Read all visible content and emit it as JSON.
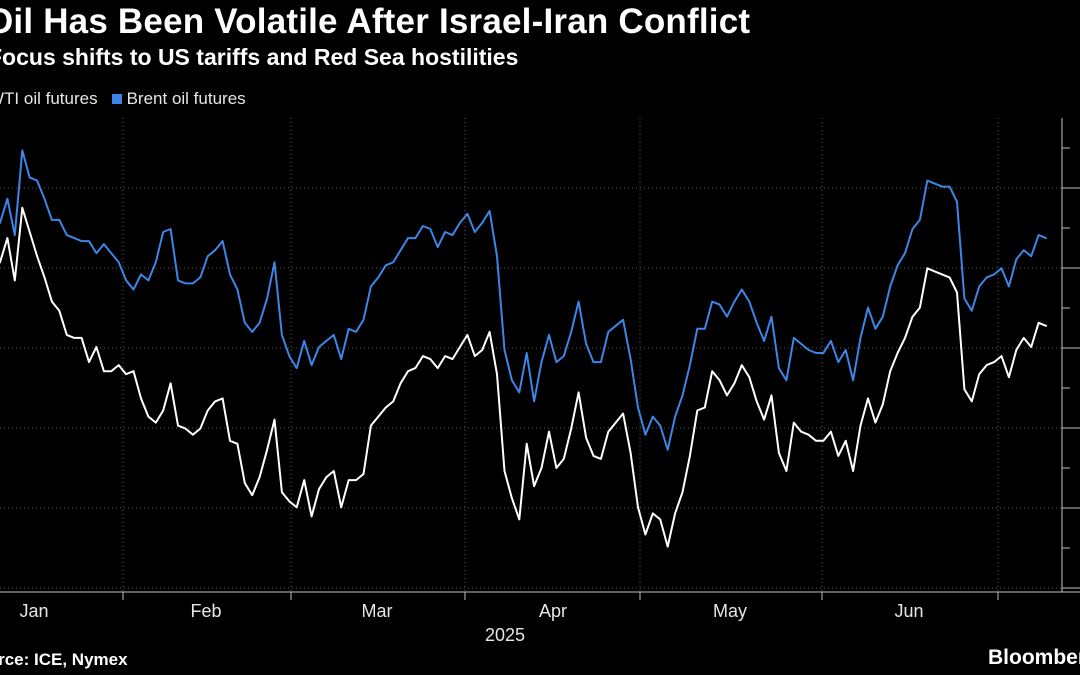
{
  "header": {
    "title": "Oil Has Been Volatile After Israel-Iran Conflict",
    "subtitle": "Focus shifts to US tariffs and Red Sea hostilities"
  },
  "footer": {
    "source": "Source: ICE, Nymex",
    "brand": "Bloomberg"
  },
  "colors": {
    "background": "#000000",
    "wti": "#ffffff",
    "brent": "#3d85e6",
    "grid": "#5a5a5a",
    "axis": "#bfbfbf"
  },
  "chart_data": {
    "type": "line",
    "xlabel": "2025",
    "x_ticks": [
      "Jan",
      "Feb",
      "Mar",
      "Apr",
      "May",
      "Jun"
    ],
    "grid": true,
    "legend_position": "top-left",
    "series": [
      {
        "name": "WTI oil futures",
        "color": "#ffffff",
        "values": [
          79.9,
          80.7,
          79.3,
          81.7,
          80.9,
          80.1,
          79.4,
          78.6,
          78.3,
          77.5,
          77.4,
          77.4,
          76.6,
          77.1,
          76.3,
          76.3,
          76.5,
          76.2,
          76.3,
          75.4,
          74.8,
          74.6,
          75.0,
          75.9,
          74.5,
          74.4,
          74.2,
          74.4,
          75.0,
          75.3,
          75.4,
          74.0,
          73.9,
          72.6,
          72.2,
          72.8,
          73.7,
          74.7,
          72.3,
          72.0,
          71.8,
          72.7,
          71.5,
          72.4,
          72.8,
          73.0,
          71.8,
          72.7,
          72.7,
          72.9,
          74.5,
          74.8,
          75.1,
          75.3,
          75.9,
          76.3,
          76.4,
          76.8,
          76.7,
          76.4,
          76.8,
          76.7,
          77.1,
          77.5,
          76.8,
          77.0,
          77.6,
          76.2,
          73.0,
          72.1,
          71.4,
          73.9,
          72.5,
          73.1,
          74.3,
          73.1,
          73.4,
          74.4,
          75.6,
          74.1,
          73.5,
          73.4,
          74.3,
          74.6,
          74.9,
          73.6,
          71.8,
          70.9,
          71.6,
          71.4,
          70.5,
          71.6,
          72.3,
          73.5,
          75.0,
          75.1,
          76.3,
          76.0,
          75.5,
          75.9,
          76.5,
          76.1,
          75.3,
          74.7,
          75.5,
          73.6,
          73.0,
          74.6,
          74.3,
          74.2,
          74.0,
          74.0,
          74.3,
          73.5,
          74.0,
          73.0,
          74.5,
          75.4,
          74.6,
          75.2,
          76.3,
          76.9,
          77.4,
          78.1,
          78.4,
          79.7,
          79.6,
          79.5,
          79.4,
          78.9,
          75.7,
          75.3,
          76.2,
          76.5,
          76.6,
          76.8,
          76.1,
          77.0,
          77.4,
          77.1,
          77.9,
          77.8
        ]
      },
      {
        "name": "Brent oil futures",
        "color": "#3d85e6",
        "values": [
          81.2,
          82.0,
          80.8,
          83.6,
          82.7,
          82.6,
          82.0,
          81.3,
          81.3,
          80.8,
          80.7,
          80.6,
          80.6,
          80.2,
          80.5,
          80.2,
          79.9,
          79.3,
          79.0,
          79.5,
          79.3,
          79.9,
          80.9,
          81.0,
          79.3,
          79.2,
          79.2,
          79.4,
          80.1,
          80.3,
          80.6,
          79.5,
          79.0,
          77.9,
          77.6,
          77.9,
          78.7,
          79.9,
          77.5,
          76.8,
          76.4,
          77.3,
          76.5,
          77.1,
          77.3,
          77.5,
          76.7,
          77.7,
          77.6,
          78.0,
          79.1,
          79.4,
          79.8,
          79.9,
          80.3,
          80.7,
          80.7,
          81.1,
          81.0,
          80.4,
          80.9,
          80.8,
          81.2,
          81.5,
          80.9,
          81.2,
          81.6,
          80.1,
          77.0,
          76.0,
          75.6,
          76.9,
          75.3,
          76.6,
          77.5,
          76.6,
          76.8,
          77.6,
          78.6,
          77.2,
          76.6,
          76.6,
          77.6,
          77.8,
          78.0,
          76.7,
          75.1,
          74.2,
          74.8,
          74.5,
          73.7,
          74.8,
          75.5,
          76.5,
          77.7,
          77.7,
          78.6,
          78.5,
          78.1,
          78.6,
          79.0,
          78.6,
          77.9,
          77.3,
          78.1,
          76.4,
          76.0,
          77.4,
          77.2,
          77.0,
          76.9,
          76.9,
          77.3,
          76.6,
          77.0,
          76.0,
          77.4,
          78.4,
          77.7,
          78.1,
          79.1,
          79.8,
          80.2,
          81.0,
          81.3,
          82.6,
          82.5,
          82.4,
          82.4,
          81.9,
          78.7,
          78.3,
          79.1,
          79.4,
          79.5,
          79.7,
          79.1,
          80.0,
          80.3,
          80.1,
          80.8,
          80.7
        ]
      }
    ]
  }
}
